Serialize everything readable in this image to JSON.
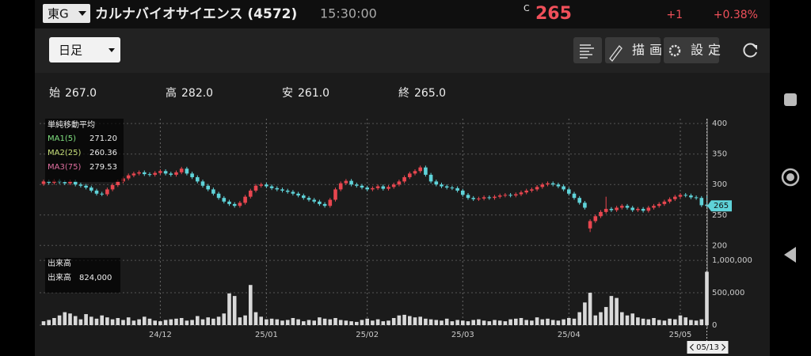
{
  "header": {
    "market": "東G",
    "title": "カルナバイオサイエンス (4572)",
    "time": "15:30:00",
    "price_flag": "C",
    "price": "265",
    "change": "+1",
    "change_pct": "+0.38%"
  },
  "toolbar": {
    "period": "日足",
    "draw": "描画",
    "settings": "設定"
  },
  "quote": [
    {
      "label": "始",
      "value": "267.0"
    },
    {
      "label": "高",
      "value": "282.0"
    },
    {
      "label": "安",
      "value": "261.0"
    },
    {
      "label": "終",
      "value": "265.0"
    }
  ],
  "chart_data": [
    {
      "type": "candlestick",
      "up_color": "#e8464f",
      "down_color": "#5fd3d9",
      "ma_legend": {
        "title": "単純移動平均",
        "items": [
          {
            "name": "MA1(5)",
            "value": "271.20",
            "color": "#7fe07f"
          },
          {
            "name": "MA2(25)",
            "value": "260.36",
            "color": "#c8e07a"
          },
          {
            "name": "MA3(75)",
            "value": "279.53",
            "color": "#e06fa0"
          }
        ]
      },
      "ylim": [
        190,
        408
      ],
      "yticks": [
        200,
        250,
        300,
        350,
        400
      ],
      "grid": true,
      "cursor_date": "05/13",
      "open": [
        301,
        305,
        303,
        306,
        304,
        302,
        305,
        300,
        298,
        295,
        290,
        285,
        284,
        292,
        299,
        305,
        310,
        315,
        318,
        320,
        317,
        316,
        319,
        322,
        318,
        316,
        320,
        326,
        318,
        312,
        305,
        298,
        292,
        285,
        278,
        272,
        268,
        265,
        270,
        280,
        290,
        298,
        300,
        297,
        294,
        292,
        290,
        288,
        285,
        282,
        278,
        275,
        272,
        268,
        265,
        275,
        292,
        302,
        306,
        300,
        298,
        295,
        292,
        294,
        297,
        293,
        296,
        300,
        305,
        312,
        318,
        322,
        328,
        316,
        305,
        300,
        297,
        295,
        294,
        290,
        283,
        278,
        276,
        277,
        279,
        278,
        280,
        282,
        283,
        282,
        284,
        287,
        290,
        292,
        296,
        300,
        302,
        300,
        297,
        292,
        285,
        278,
        270,
        228,
        240,
        248,
        255,
        260,
        258,
        262,
        265,
        262,
        258,
        260,
        257,
        262,
        265,
        268,
        272,
        276,
        280,
        283,
        282,
        279,
        278,
        267
      ],
      "high": [
        308,
        308,
        309,
        309,
        307,
        308,
        308,
        303,
        301,
        298,
        293,
        288,
        295,
        302,
        308,
        313,
        318,
        321,
        323,
        323,
        320,
        322,
        325,
        325,
        321,
        323,
        329,
        329,
        321,
        315,
        308,
        301,
        295,
        288,
        281,
        275,
        271,
        273,
        283,
        293,
        301,
        303,
        303,
        300,
        297,
        295,
        293,
        291,
        288,
        285,
        281,
        278,
        275,
        271,
        278,
        295,
        305,
        309,
        309,
        303,
        301,
        298,
        297,
        300,
        300,
        299,
        303,
        308,
        315,
        321,
        325,
        331,
        331,
        319,
        308,
        303,
        300,
        298,
        297,
        293,
        286,
        281,
        280,
        282,
        282,
        283,
        285,
        286,
        286,
        287,
        290,
        293,
        295,
        299,
        303,
        305,
        305,
        303,
        300,
        295,
        288,
        281,
        273,
        243,
        251,
        258,
        280,
        263,
        265,
        268,
        268,
        265,
        263,
        263,
        265,
        268,
        271,
        275,
        279,
        283,
        286,
        286,
        285,
        282,
        281,
        282
      ],
      "low": [
        298,
        300,
        300,
        301,
        299,
        299,
        297,
        295,
        292,
        287,
        282,
        281,
        281,
        289,
        296,
        302,
        307,
        312,
        315,
        314,
        313,
        313,
        316,
        315,
        313,
        313,
        317,
        315,
        309,
        302,
        295,
        289,
        282,
        275,
        269,
        265,
        262,
        262,
        267,
        277,
        287,
        295,
        294,
        291,
        289,
        287,
        285,
        282,
        279,
        275,
        272,
        269,
        265,
        262,
        262,
        272,
        289,
        299,
        297,
        295,
        292,
        289,
        289,
        291,
        290,
        290,
        293,
        297,
        302,
        309,
        315,
        319,
        313,
        302,
        297,
        294,
        292,
        291,
        287,
        280,
        275,
        273,
        273,
        274,
        275,
        275,
        277,
        279,
        279,
        279,
        281,
        284,
        287,
        289,
        293,
        297,
        297,
        294,
        289,
        282,
        275,
        267,
        259,
        222,
        237,
        245,
        252,
        255,
        255,
        259,
        259,
        255,
        255,
        254,
        254,
        259,
        262,
        265,
        269,
        273,
        277,
        279,
        276,
        275,
        263,
        261
      ],
      "close": [
        305,
        303,
        306,
        304,
        302,
        305,
        300,
        298,
        295,
        290,
        285,
        284,
        292,
        299,
        305,
        310,
        315,
        318,
        320,
        317,
        316,
        319,
        322,
        318,
        316,
        320,
        326,
        318,
        312,
        305,
        298,
        292,
        285,
        278,
        272,
        268,
        265,
        270,
        280,
        290,
        298,
        300,
        297,
        294,
        292,
        290,
        288,
        285,
        282,
        278,
        275,
        272,
        268,
        265,
        275,
        292,
        302,
        306,
        300,
        298,
        295,
        292,
        294,
        297,
        293,
        296,
        300,
        305,
        312,
        318,
        322,
        328,
        316,
        305,
        300,
        297,
        295,
        294,
        290,
        283,
        278,
        276,
        277,
        279,
        278,
        280,
        282,
        283,
        282,
        284,
        287,
        290,
        292,
        296,
        300,
        302,
        300,
        297,
        292,
        285,
        278,
        270,
        262,
        240,
        248,
        255,
        260,
        258,
        262,
        265,
        262,
        258,
        260,
        257,
        262,
        265,
        268,
        272,
        276,
        280,
        283,
        282,
        279,
        278,
        266,
        265
      ]
    },
    {
      "type": "bar",
      "color": "#d9d9d9",
      "legend": {
        "title": "出来高",
        "label": "出来高",
        "value": "824,000"
      },
      "ylim": [
        0,
        1050000
      ],
      "yticks": [
        0,
        {
          "value": 500000,
          "label": "500,000"
        },
        {
          "value": 1000000,
          "label": "1,000,000"
        }
      ],
      "xticks": [
        {
          "value": 22,
          "label": "24/12"
        },
        {
          "value": 42,
          "label": "25/01"
        },
        {
          "value": 61,
          "label": "25/02"
        },
        {
          "value": 79,
          "label": "25/03"
        },
        {
          "value": 99,
          "label": "25/04"
        },
        {
          "value": 120,
          "label": "25/05"
        }
      ],
      "values": [
        60000,
        80000,
        110000,
        150000,
        200000,
        180000,
        140000,
        90000,
        170000,
        130000,
        100000,
        150000,
        120000,
        90000,
        110000,
        80000,
        120000,
        70000,
        90000,
        130000,
        100000,
        70000,
        60000,
        80000,
        90000,
        100000,
        110000,
        70000,
        80000,
        140000,
        90000,
        120000,
        100000,
        130000,
        180000,
        490000,
        450000,
        120000,
        150000,
        620000,
        200000,
        130000,
        90000,
        100000,
        90000,
        70000,
        80000,
        110000,
        90000,
        60000,
        80000,
        70000,
        120000,
        100000,
        90000,
        110000,
        80000,
        70000,
        60000,
        50000,
        80000,
        100000,
        70000,
        90000,
        60000,
        70000,
        110000,
        150000,
        160000,
        140000,
        120000,
        130000,
        100000,
        90000,
        80000,
        70000,
        100000,
        60000,
        80000,
        70000,
        60000,
        80000,
        90000,
        70000,
        60000,
        80000,
        70000,
        60000,
        90000,
        100000,
        110000,
        80000,
        70000,
        120000,
        90000,
        100000,
        80000,
        70000,
        90000,
        110000,
        100000,
        200000,
        350000,
        500000,
        150000,
        200000,
        280000,
        450000,
        420000,
        200000,
        150000,
        180000,
        120000,
        100000,
        90000,
        110000,
        80000,
        70000,
        100000,
        90000,
        150000,
        120000,
        80000,
        70000,
        90000,
        824000
      ]
    }
  ]
}
